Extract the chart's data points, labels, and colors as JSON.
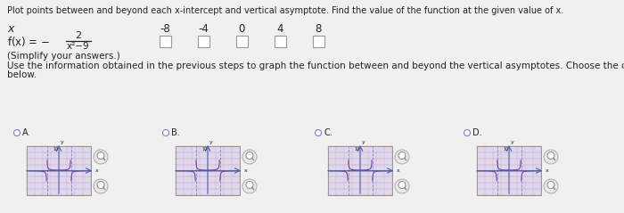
{
  "title_text": "Plot points between and beyond each x-intercept and vertical asymptote. Find the value of the function at the given value of x.",
  "x_values": [
    "-8",
    "-4",
    "0",
    "4",
    "8"
  ],
  "simplify_note": "(Simplify your answers.)",
  "use_info_text1": "Use the information obtained in the previous steps to graph the function between and beyond the vertical asymptotes. Choose the correc",
  "use_info_text2": "below.",
  "options": [
    "A.",
    "B.",
    "C.",
    "D."
  ],
  "bg_color": "#f0f0f0",
  "text_color": "#222222",
  "graph_bg": "#ddd8ee",
  "grid_h_color": "#e06060",
  "grid_v_color": "#c090c0",
  "axis_color": "#5060b0",
  "curve_color_a": "#7040a0",
  "curve_color_b": "#7040a0",
  "curve_color_c": "#7040a0",
  "curve_color_d": "#7040a0",
  "option_circle_color": "#8080c0",
  "magnifier_bg": "#e8e8e8",
  "magnifier_border": "#aaaaaa",
  "box_border": "#999999",
  "fraction_bar_color": "#222222"
}
